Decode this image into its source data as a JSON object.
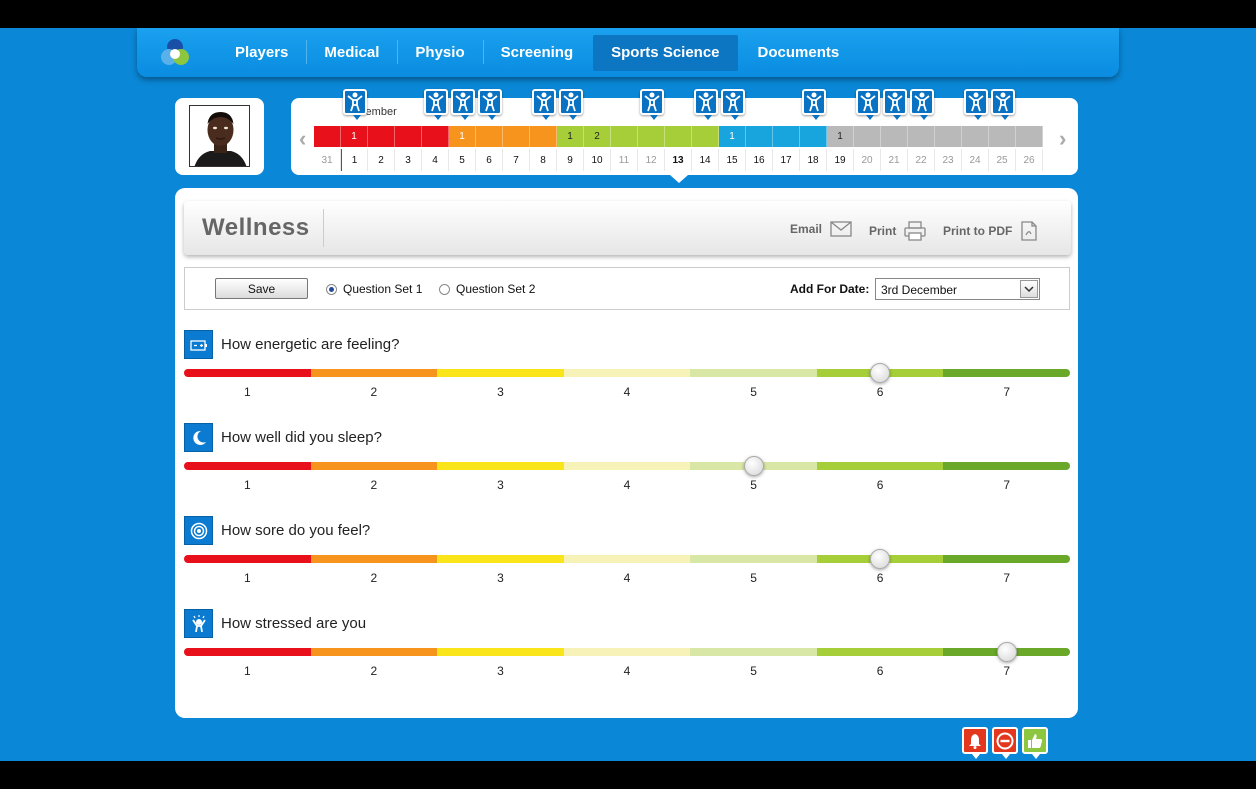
{
  "nav": {
    "items": [
      {
        "label": "Players"
      },
      {
        "label": "Medical"
      },
      {
        "label": "Physio"
      },
      {
        "label": "Screening"
      },
      {
        "label": "Sports Science",
        "active": true
      },
      {
        "label": "Documents"
      }
    ]
  },
  "timeline": {
    "month": "December",
    "bar_labels": [
      "",
      "1",
      "",
      "",
      "",
      "1",
      "",
      "",
      "",
      "1",
      "2",
      "",
      "",
      "",
      "",
      "1",
      "",
      "",
      "",
      "1",
      "",
      "",
      "",
      "",
      "",
      "",
      ""
    ],
    "bar_colors": [
      "#e8101a",
      "#e8101a",
      "#e8101a",
      "#e8101a",
      "#e8101a",
      "#f7941d",
      "#f7941d",
      "#f7941d",
      "#f7941d",
      "#a6ce39",
      "#a6ce39",
      "#a6ce39",
      "#a6ce39",
      "#a6ce39",
      "#a6ce39",
      "#18a5dd",
      "#18a5dd",
      "#18a5dd",
      "#18a5dd",
      "#b9b9b9",
      "#b9b9b9",
      "#b9b9b9",
      "#b9b9b9",
      "#b9b9b9",
      "#b9b9b9",
      "#b9b9b9",
      "#b9b9b9"
    ],
    "days": [
      "31",
      "1",
      "2",
      "3",
      "4",
      "5",
      "6",
      "7",
      "8",
      "9",
      "10",
      "11",
      "12",
      "13",
      "14",
      "15",
      "16",
      "17",
      "18",
      "19",
      "20",
      "21",
      "22",
      "23",
      "24",
      "25",
      "26"
    ],
    "flag_day_indices": [
      1,
      4,
      5,
      6,
      8,
      9,
      12,
      14,
      15,
      18,
      20,
      21,
      22,
      24,
      25
    ]
  },
  "panel": {
    "title": "Wellness",
    "actions": {
      "email": "Email",
      "print": "Print",
      "print_pdf": "Print to PDF"
    }
  },
  "toolbar": {
    "save_label": "Save",
    "question_set_1": "Question Set 1",
    "question_set_2": "Question Set 2",
    "selected_set": 1,
    "date_label": "Add For Date:",
    "date_value": "3rd December"
  },
  "scale": {
    "ticks": [
      "1",
      "2",
      "3",
      "4",
      "5",
      "6",
      "7"
    ],
    "colors": [
      "#e8101a",
      "#f7941d",
      "#f9e51a",
      "#f6f2b8",
      "#d8e6a6",
      "#a6ce39",
      "#6aa82a"
    ]
  },
  "questions": [
    {
      "label": "How energetic are feeling?",
      "icon": "battery-icon",
      "value": 6
    },
    {
      "label": "How well did you sleep?",
      "icon": "moon-icon",
      "value": 5
    },
    {
      "label": "How sore do you feel?",
      "icon": "target-icon",
      "value": 6
    },
    {
      "label": "How stressed are you",
      "icon": "stressed-person-icon",
      "value": 7
    }
  ],
  "alerts": [
    {
      "icon": "bell-icon",
      "color": "#e3371e",
      "count": "0"
    },
    {
      "icon": "minus-circle-icon",
      "color": "#e3371e",
      "count": "0"
    },
    {
      "icon": "thumbs-up-icon",
      "color": "#8dc63f",
      "count": "0"
    }
  ]
}
